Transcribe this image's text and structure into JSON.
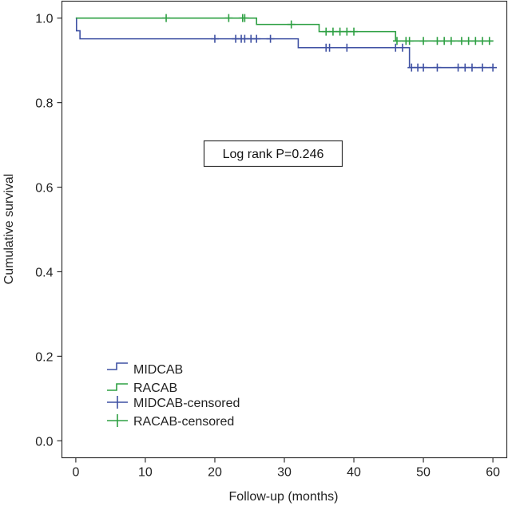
{
  "chart_data": {
    "type": "line",
    "subtype": "kaplan-meier",
    "title": "",
    "xlabel": "Follow-up (months)",
    "ylabel": "Cumulative survival",
    "xlim": [
      -2,
      62
    ],
    "ylim": [
      -0.04,
      1.04
    ],
    "xticks": [
      0,
      10,
      20,
      30,
      40,
      50,
      60
    ],
    "yticks": [
      0.0,
      0.2,
      0.4,
      0.6,
      0.8,
      1.0
    ],
    "ytick_labels": [
      "0.0",
      "0.2",
      "0.4",
      "0.6",
      "0.8",
      "1.0"
    ],
    "grid": false,
    "annotation": "Log rank P=0.246",
    "legend_position": "bottom-left",
    "series": [
      {
        "name": "MIDCAB",
        "color": "#3f51a3",
        "steps": [
          [
            0,
            1.0
          ],
          [
            0.1,
            0.97
          ],
          [
            0.6,
            0.951
          ],
          [
            32,
            0.93
          ],
          [
            48,
            0.883
          ],
          [
            60,
            0.883
          ]
        ],
        "censored_name": "MIDCAB-censored",
        "censored": [
          [
            20,
            0.951
          ],
          [
            23,
            0.951
          ],
          [
            23.8,
            0.951
          ],
          [
            24.3,
            0.951
          ],
          [
            25.2,
            0.951
          ],
          [
            26,
            0.951
          ],
          [
            28,
            0.951
          ],
          [
            36,
            0.93
          ],
          [
            36.5,
            0.93
          ],
          [
            39,
            0.93
          ],
          [
            46,
            0.93
          ],
          [
            47,
            0.93
          ],
          [
            48.3,
            0.883
          ],
          [
            49.2,
            0.883
          ],
          [
            50,
            0.883
          ],
          [
            52,
            0.883
          ],
          [
            55,
            0.883
          ],
          [
            56,
            0.883
          ],
          [
            57,
            0.883
          ],
          [
            58.5,
            0.883
          ],
          [
            60,
            0.883
          ]
        ]
      },
      {
        "name": "RACAB",
        "color": "#2ea043",
        "steps": [
          [
            0,
            1.0
          ],
          [
            26,
            0.985
          ],
          [
            35,
            0.968
          ],
          [
            46,
            0.946
          ],
          [
            60,
            0.946
          ]
        ],
        "censored_name": "RACAB-censored",
        "censored": [
          [
            13,
            1.0
          ],
          [
            22,
            1.0
          ],
          [
            24,
            1.0
          ],
          [
            24.3,
            1.0
          ],
          [
            31,
            0.985
          ],
          [
            36,
            0.968
          ],
          [
            37,
            0.968
          ],
          [
            38,
            0.968
          ],
          [
            39,
            0.968
          ],
          [
            40,
            0.968
          ],
          [
            46.2,
            0.946
          ],
          [
            47.5,
            0.946
          ],
          [
            48,
            0.946
          ],
          [
            50,
            0.946
          ],
          [
            52,
            0.946
          ],
          [
            53,
            0.946
          ],
          [
            54,
            0.946
          ],
          [
            55.5,
            0.946
          ],
          [
            56.5,
            0.946
          ],
          [
            57.5,
            0.946
          ],
          [
            58.5,
            0.946
          ],
          [
            59.5,
            0.946
          ]
        ]
      }
    ]
  }
}
